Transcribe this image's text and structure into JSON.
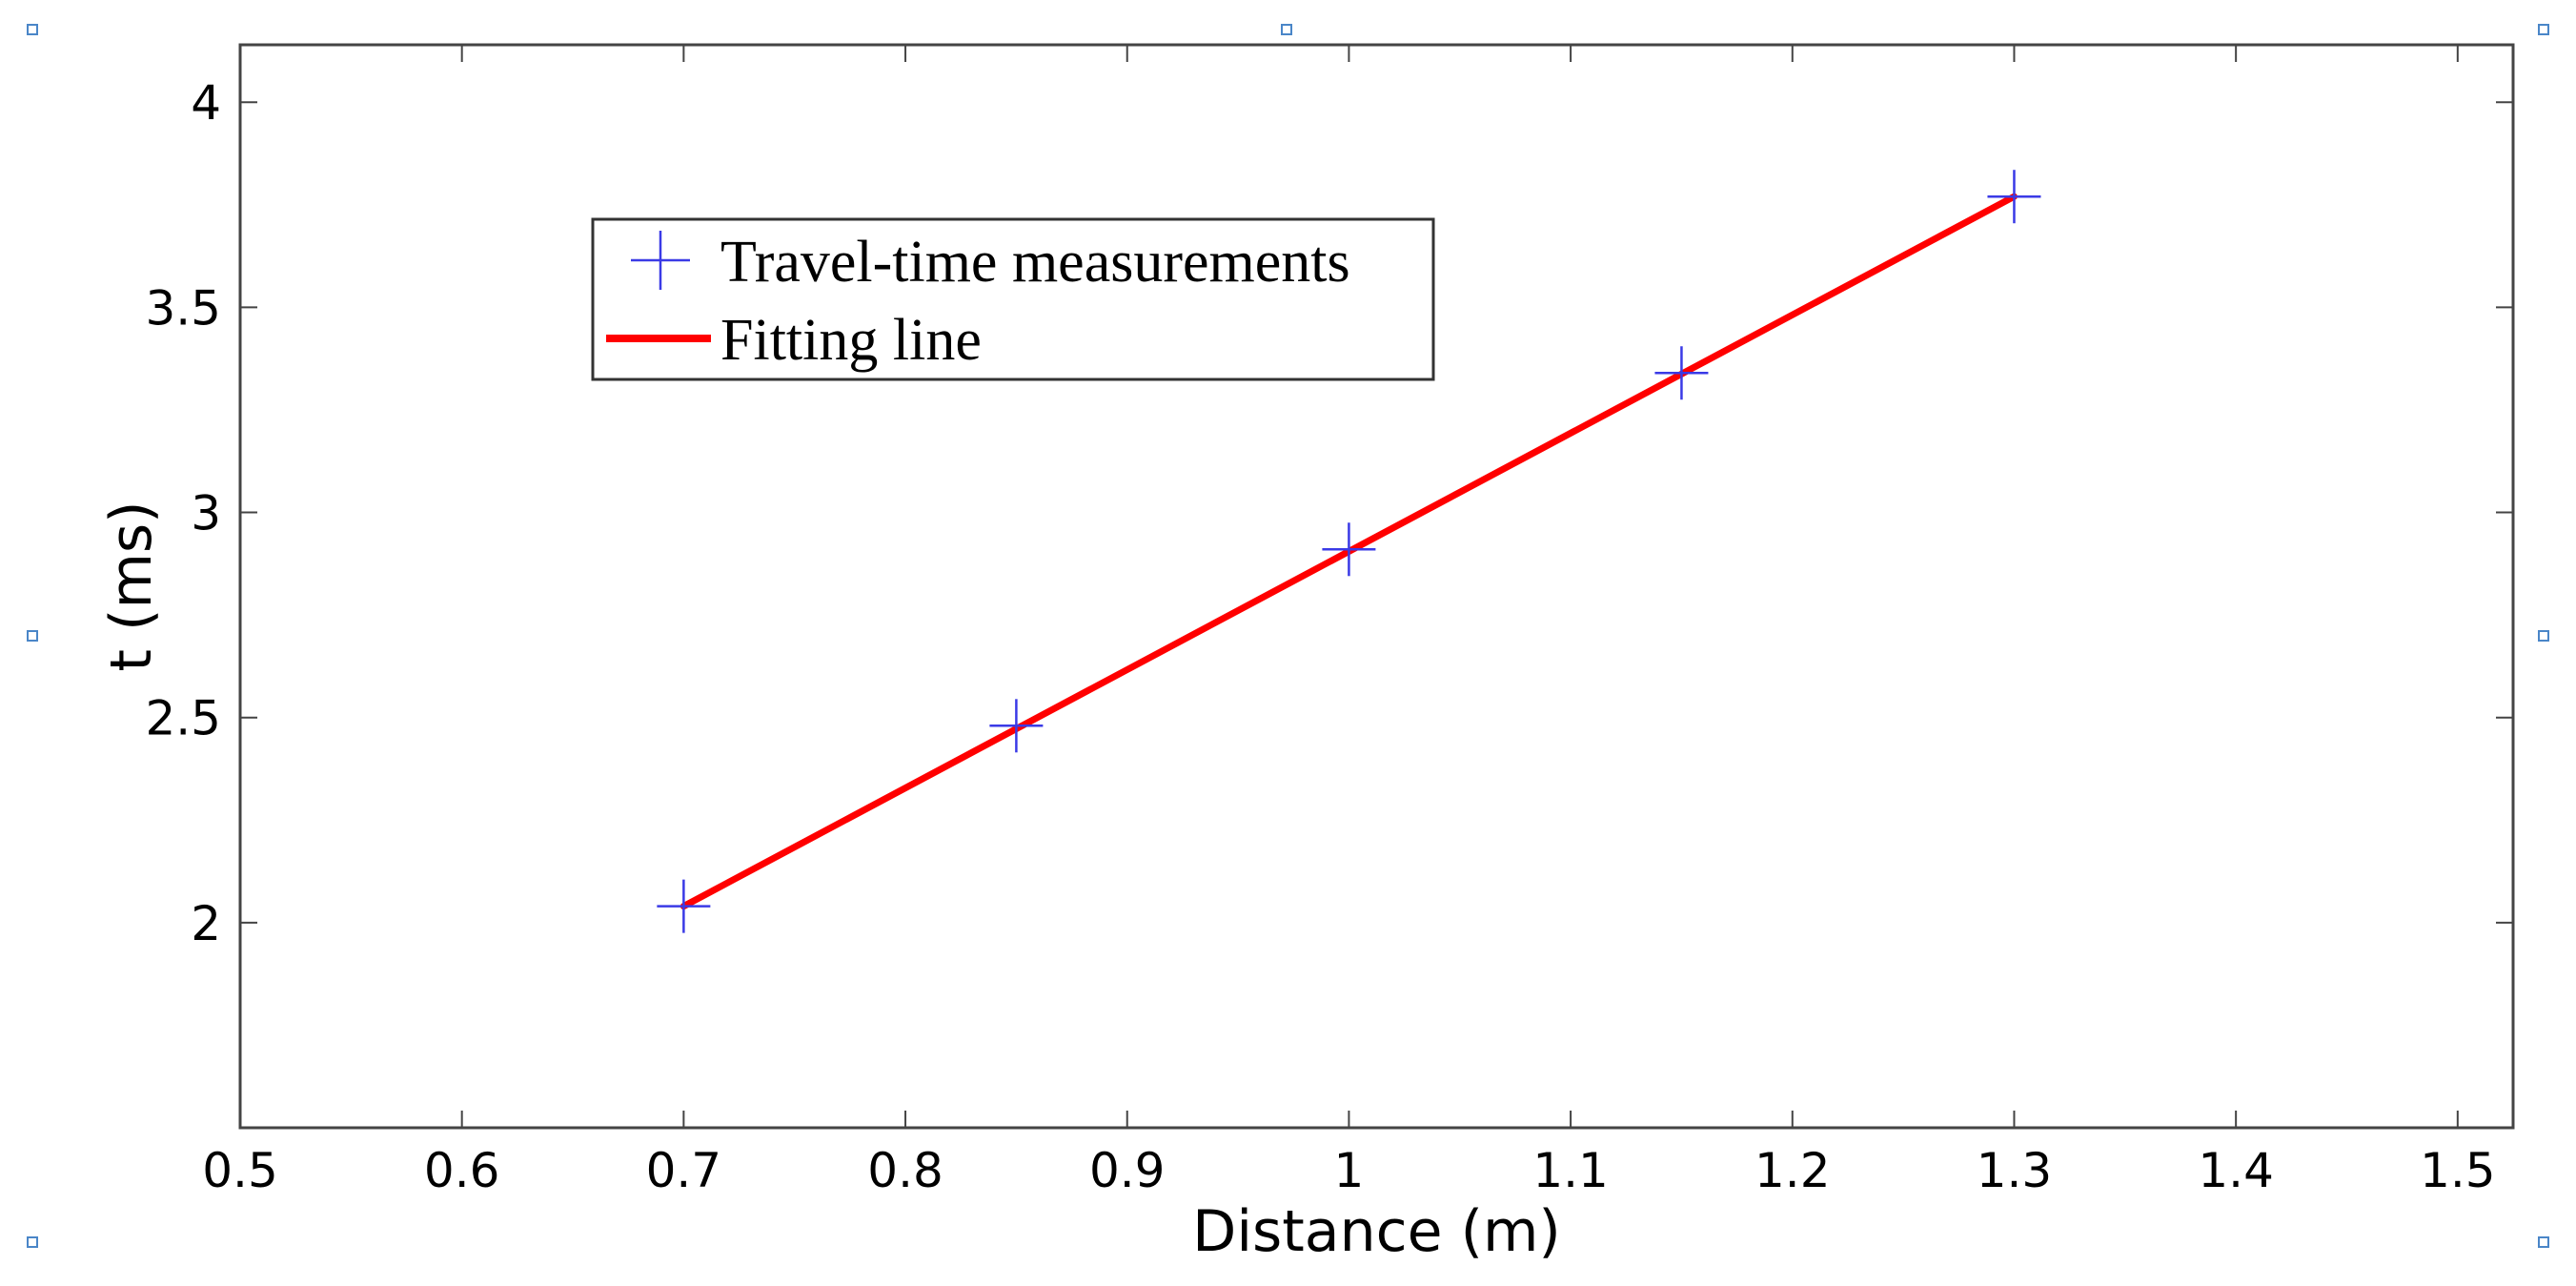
{
  "chart_data": {
    "type": "scatter",
    "xlabel": "Distance (m)",
    "ylabel": "t (ms)",
    "xlim": [
      0.5,
      1.525
    ],
    "ylim": [
      1.5,
      4.14
    ],
    "x_ticks": [
      0.5,
      0.6,
      0.7,
      0.8,
      0.9,
      1.0,
      1.1,
      1.2,
      1.3,
      1.4,
      1.5
    ],
    "x_tick_labels": [
      "0.5",
      "0.6",
      "0.7",
      "0.8",
      "0.9",
      "1",
      "1.1",
      "1.2",
      "1.3",
      "1.4",
      "1.5"
    ],
    "y_ticks": [
      2.0,
      2.5,
      3.0,
      3.5,
      4.0
    ],
    "y_tick_labels": [
      "2",
      "2.5",
      "3",
      "3.5",
      "4"
    ],
    "grid": false,
    "legend_position": "upper-left",
    "series": [
      {
        "name": "Travel-time measurements",
        "kind": "markers",
        "marker": "plus",
        "color": "#3a3ae6",
        "x": [
          0.7,
          0.85,
          1.0,
          1.15,
          1.3
        ],
        "y": [
          2.04,
          2.48,
          2.91,
          3.34,
          3.77
        ]
      },
      {
        "name": "Fitting line",
        "kind": "line",
        "color": "#ff0000",
        "x": [
          0.7,
          1.3
        ],
        "y": [
          2.04,
          3.77
        ]
      }
    ]
  }
}
